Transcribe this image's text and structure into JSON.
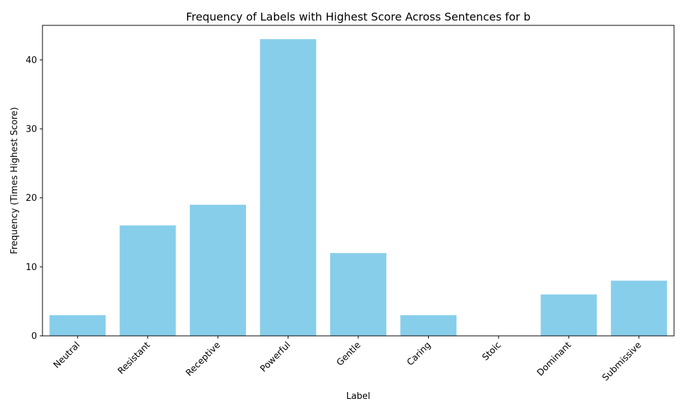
{
  "chart_data": {
    "type": "bar",
    "title": "Frequency of Labels with Highest Score Across Sentences for b",
    "xlabel": "Label",
    "ylabel": "Frequency (Times Highest Score)",
    "categories": [
      "Neutral",
      "Resistant",
      "Receptive",
      "Powerful",
      "Gentle",
      "Caring",
      "Stoic",
      "Dominant",
      "Submissive"
    ],
    "values": [
      3,
      16,
      19,
      43,
      12,
      3,
      0,
      6,
      8
    ],
    "ylim": [
      0,
      45
    ],
    "yticks": [
      0,
      10,
      20,
      30,
      40
    ],
    "bar_color": "#87ceeb",
    "grid": false,
    "legend": "none"
  }
}
